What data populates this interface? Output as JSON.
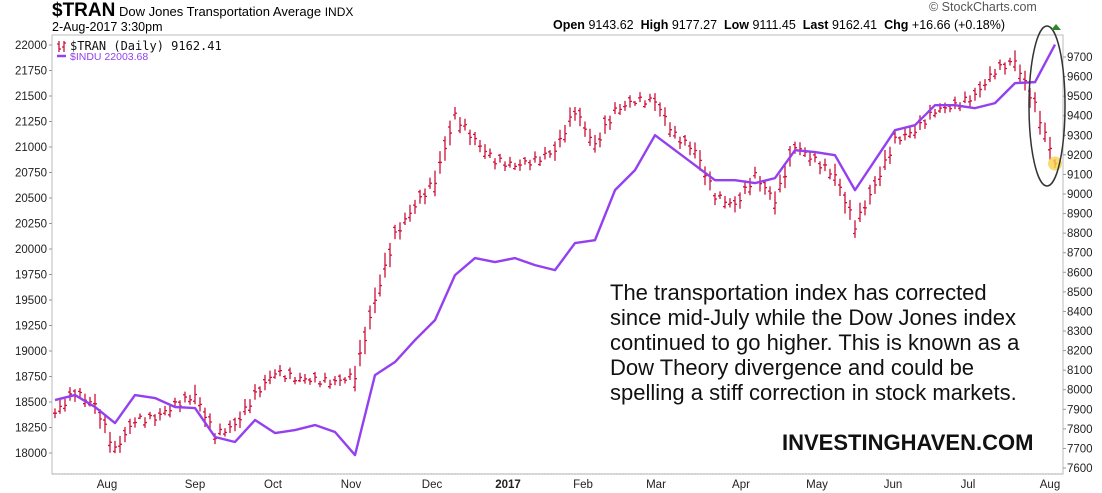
{
  "header": {
    "symbol": "$TRAN",
    "name": "Dow Jones Transportation Average",
    "exchange": "INDX",
    "datetime": "2-Aug-2017 3:30pm",
    "watermark": "© StockCharts.com",
    "quote": {
      "open_label": "Open",
      "open": "9143.62",
      "high_label": "High",
      "high": "9177.27",
      "low_label": "Low",
      "low": "9111.45",
      "last_label": "Last",
      "last": "9162.41",
      "chg_label": "Chg",
      "chg": "+16.66 (+0.18%)"
    }
  },
  "legend": {
    "tran": "$TRAN (Daily) 9162.41",
    "indu": "$INDU 22003.68"
  },
  "colors": {
    "tran": "#d0103a",
    "indu": "#9440f0",
    "highlight": "#f7d24a"
  },
  "annotation": {
    "lines": [
      "The transportation index has corrected",
      "since mid-July while the Dow Jones index",
      "continued to go higher. This is known as a",
      "Dow Theory divergence and could be",
      "spelling a stiff correction in stock markets."
    ],
    "brand": "INVESTINGHAVEN.COM"
  },
  "chart_data": {
    "type": "line",
    "title": "$TRAN Dow Jones Transportation Average INDX",
    "x_ticks": [
      {
        "label": "Aug",
        "x": 2.6
      },
      {
        "label": "Sep",
        "x": 7.0
      },
      {
        "label": "Oct",
        "x": 10.9
      },
      {
        "label": "Nov",
        "x": 14.8
      },
      {
        "label": "Dec",
        "x": 18.85
      },
      {
        "label": "2017",
        "x": 22.65
      },
      {
        "label": "Feb",
        "x": 26.4
      },
      {
        "label": "Mar",
        "x": 30.05
      },
      {
        "label": "Apr",
        "x": 34.3
      },
      {
        "label": "May",
        "x": 38.1
      },
      {
        "label": "Jun",
        "x": 41.9
      },
      {
        "label": "Jul",
        "x": 45.65
      },
      {
        "label": "Aug",
        "x": 49.75
      }
    ],
    "xlim": [
      0,
      50
    ],
    "left_axis": {
      "series": "$INDU",
      "ylim": [
        17800,
        22100
      ],
      "ticks": [
        18000,
        18250,
        18500,
        18750,
        19000,
        19250,
        19500,
        19750,
        20000,
        20250,
        20500,
        20750,
        21000,
        21250,
        21500,
        21750,
        22000
      ]
    },
    "right_axis": {
      "series": "$TRAN",
      "ylim": [
        7580,
        9780
      ],
      "ticks": [
        7600,
        7700,
        7800,
        7900,
        8000,
        8100,
        8200,
        8300,
        8400,
        8500,
        8600,
        8700,
        8800,
        8900,
        9000,
        9100,
        9200,
        9300,
        9400,
        9500,
        9600,
        9700
      ]
    },
    "series": [
      {
        "name": "$TRAN (Daily)",
        "style": "ohlc-bars",
        "axis": "right",
        "values": [
          7880,
          7988,
          7921,
          7692,
          7845,
          7855,
          7921,
          7972,
          7768,
          7819,
          7972,
          8090,
          8059,
          8049,
          8039,
          8074,
          8457,
          8788,
          8941,
          9069,
          9400,
          9273,
          9171,
          9145,
          9171,
          9222,
          9426,
          9247,
          9426,
          9477,
          9477,
          9298,
          9222,
          8992,
          8941,
          9094,
          8967,
          9247,
          9171,
          9094,
          8839,
          9043,
          9273,
          9324,
          9426,
          9451,
          9502,
          9630,
          9681,
          9451,
          9162
        ]
      },
      {
        "name": "$INDU",
        "style": "line",
        "axis": "left",
        "values": [
          18519,
          18568,
          18451,
          18294,
          18568,
          18539,
          18451,
          18441,
          18157,
          18108,
          18323,
          18196,
          18225,
          18274,
          18206,
          17980,
          18764,
          18892,
          19107,
          19303,
          19744,
          19911,
          19872,
          19911,
          19842,
          19793,
          20058,
          20087,
          20577,
          20773,
          21116,
          20969,
          20822,
          20675,
          20675,
          20646,
          20695,
          20969,
          20950,
          20920,
          20577,
          20871,
          21165,
          21214,
          21410,
          21410,
          21381,
          21430,
          21626,
          21636,
          22004
        ]
      }
    ]
  }
}
